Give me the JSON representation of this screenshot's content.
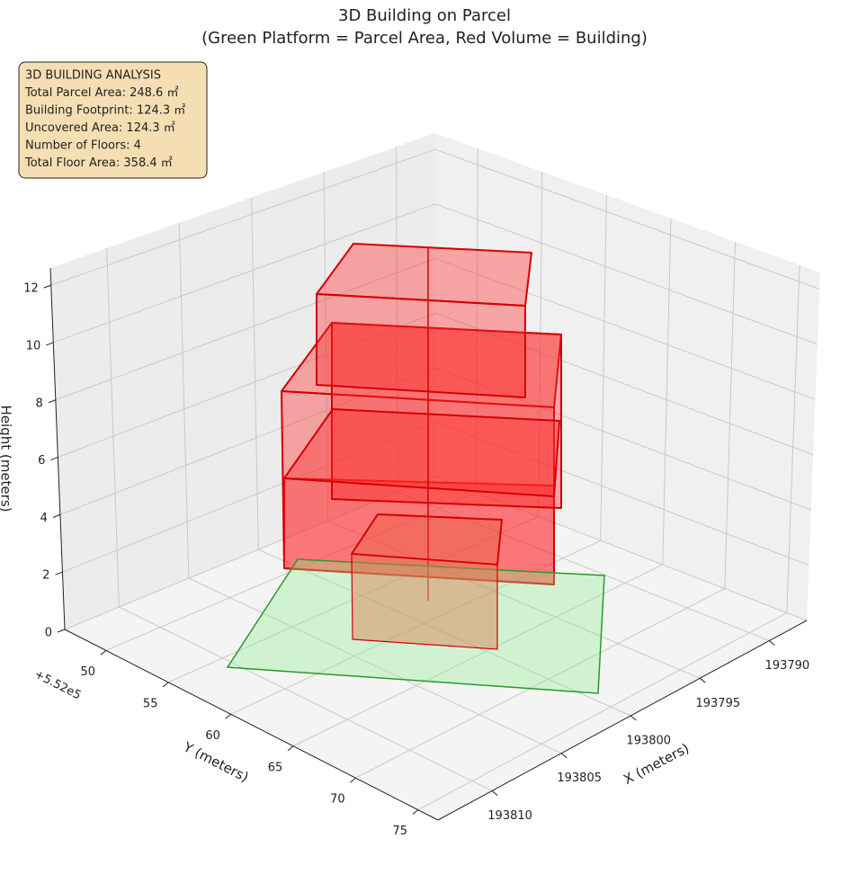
{
  "chart_data": {
    "type": "3d",
    "title": "3D Building on Parcel",
    "subtitle": "(Green Platform = Parcel Area, Red Volume = Building)",
    "annotation": [
      "3D BUILDING ANALYSIS",
      "Total Parcel Area: 248.6 ㎡",
      "Building Footprint: 124.3 ㎡",
      "Uncovered Area: 124.3 ㎡",
      "Number of Floors: 4",
      "Total Floor Area: 358.4 ㎡"
    ],
    "xlabel": "X (meters)",
    "ylabel": "Y (meters)",
    "zlabel": "Height (meters)",
    "y_offset": "+5.52e5",
    "xlim": [
      193813.9,
      193787.3
    ],
    "xticks": [
      193790,
      193795,
      193800,
      193805,
      193810
    ],
    "ylim": [
      46.7,
      76.6
    ],
    "yticks": [
      50,
      55,
      60,
      65,
      70,
      75
    ],
    "zlim": [
      0,
      12.6
    ],
    "zticks": [
      0,
      2,
      4,
      6,
      8,
      10,
      12
    ],
    "grid": true
  }
}
